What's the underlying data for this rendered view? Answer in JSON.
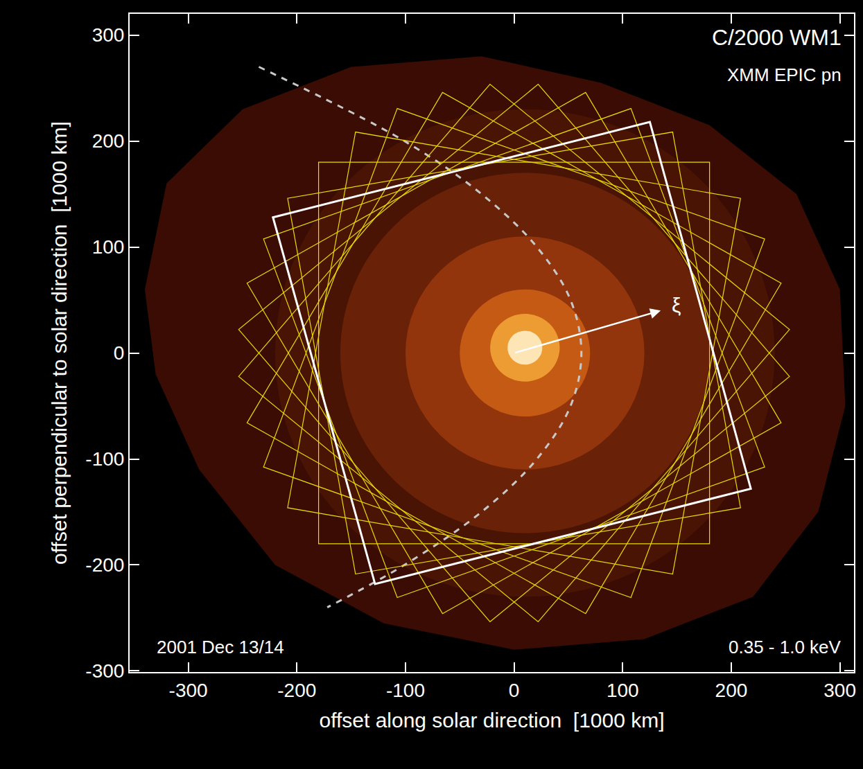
{
  "chart_data": {
    "type": "image",
    "title": "C/2000 WM1",
    "subtitle": "XMM EPIC pn",
    "bottom_left_label": "2001 Dec 13/14",
    "bottom_right_label": "0.35 - 1.0 keV",
    "x_label": "offset along solar direction  [1000 km]",
    "y_label": "offset perpendicular to solar direction  [1000 km]",
    "xlim": [
      -354,
      313
    ],
    "ylim": [
      -301,
      320
    ],
    "xticks": [
      -300,
      -200,
      -100,
      0,
      100,
      200,
      300
    ],
    "yticks": [
      -300,
      -200,
      -100,
      0,
      100,
      200,
      300
    ],
    "grid": false,
    "halo_outline": {
      "color": "#3a0c04",
      "x": [
        -340,
        -320,
        -250,
        -150,
        -30,
        80,
        180,
        260,
        300,
        305,
        280,
        220,
        120,
        0,
        -120,
        -220,
        -290,
        -330
      ],
      "y": [
        60,
        160,
        230,
        270,
        280,
        255,
        215,
        150,
        60,
        -50,
        -150,
        -230,
        -270,
        -280,
        -255,
        -200,
        -110,
        -20
      ]
    },
    "glow": [
      {
        "center": [
          10,
          0
        ],
        "radius": 230,
        "color": "#4e1606"
      },
      {
        "center": [
          10,
          0
        ],
        "radius": 170,
        "color": "#6e2409"
      },
      {
        "center": [
          10,
          0
        ],
        "radius": 110,
        "color": "#9a380d"
      },
      {
        "center": [
          10,
          0
        ],
        "radius": 60,
        "color": "#cc6015"
      },
      {
        "center": [
          10,
          5
        ],
        "radius": 32,
        "color": "#f5a83a"
      },
      {
        "center": [
          10,
          5
        ],
        "radius": 16,
        "color": "#fff2cc"
      }
    ],
    "fov_squares": {
      "center": [
        0,
        0
      ],
      "half_side": 180,
      "angles": [
        0,
        10,
        20,
        30,
        40,
        50,
        60,
        70,
        80
      ],
      "color": "#e8dc00"
    },
    "white_square": {
      "color": "#ffffff",
      "x": [
        -222,
        125,
        218,
        -128
      ],
      "y": [
        128,
        218,
        -128,
        -218
      ]
    },
    "sun_arc": {
      "color": "#c8c8c8",
      "line_style": "dash",
      "x": [
        -235,
        -101,
        -30,
        21,
        52,
        62,
        52,
        21,
        -30,
        -101,
        -172
      ],
      "y": [
        270,
        200,
        150,
        100,
        50,
        0,
        -50,
        -100,
        -150,
        -200,
        -240
      ]
    },
    "arrow": {
      "from": [
        0,
        0
      ],
      "to": [
        135,
        40
      ],
      "label": "ξ",
      "color": "#ffffff"
    }
  }
}
